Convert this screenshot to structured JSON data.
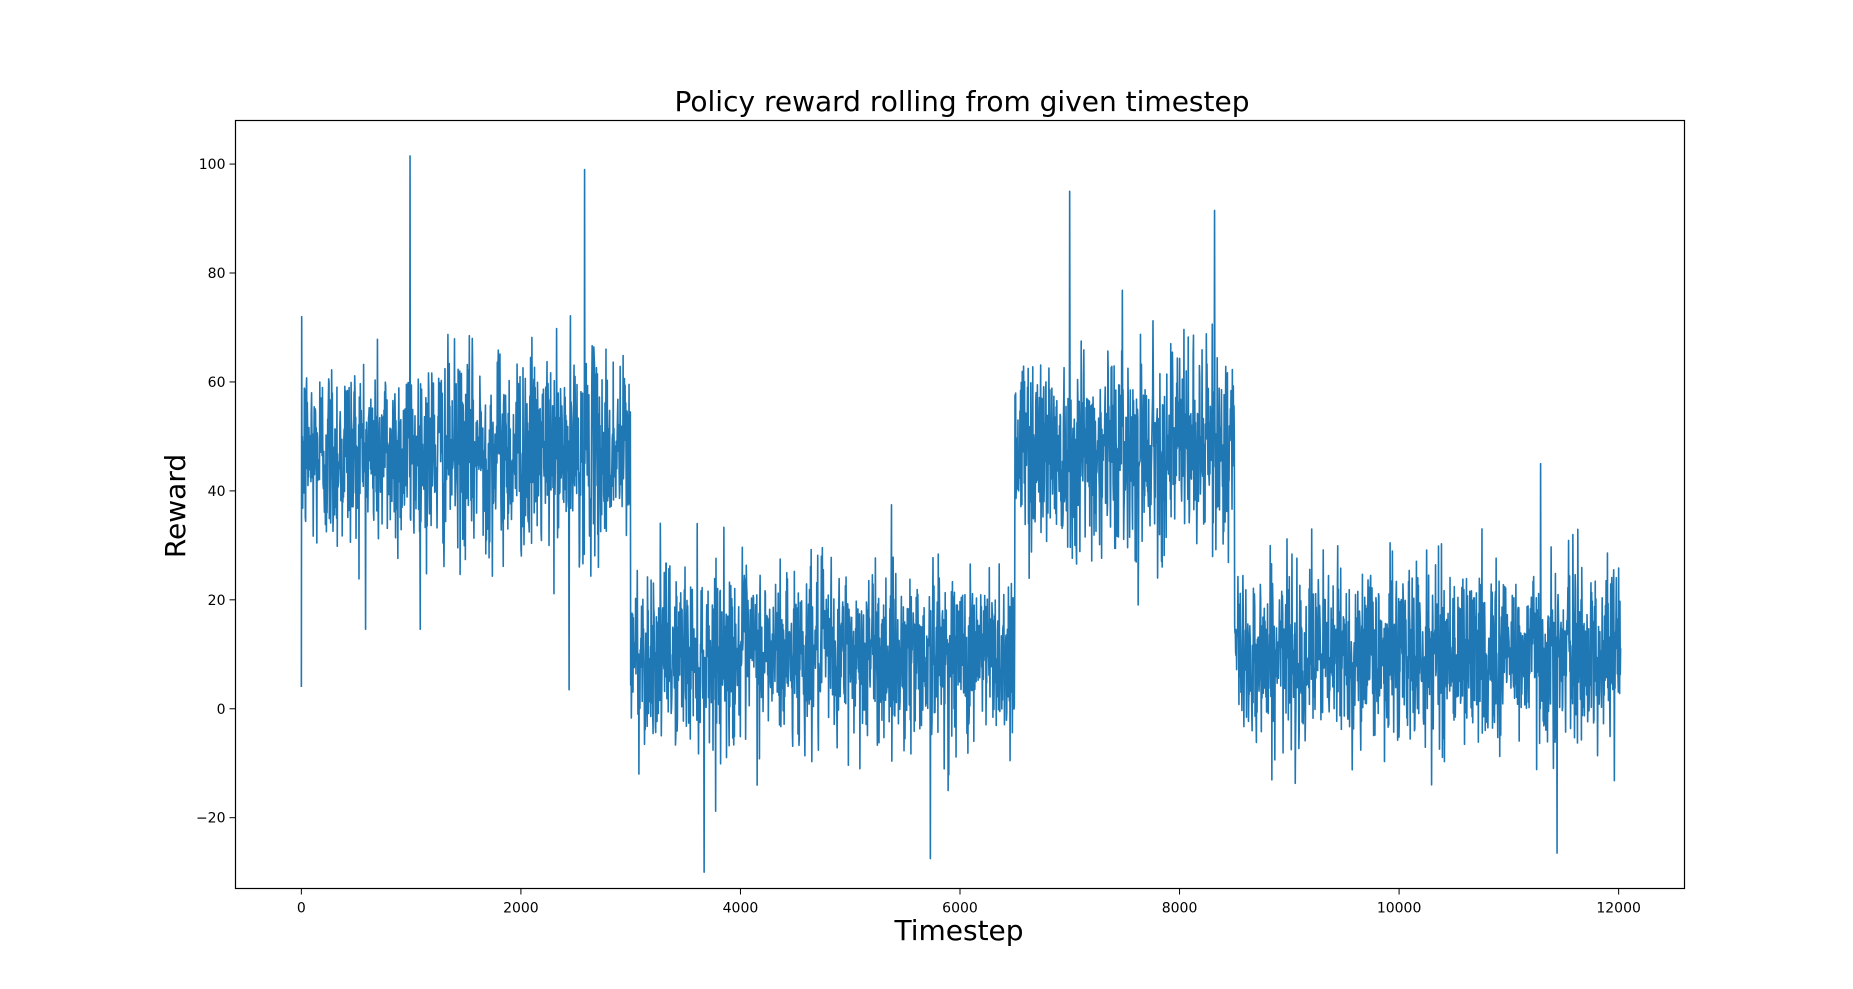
{
  "chart_data": {
    "type": "line",
    "title": "Policy reward rolling from given timestep",
    "xlabel": "Timestep",
    "ylabel": "Reward",
    "xlim": [
      -600,
      12600
    ],
    "ylim": [
      -33,
      108
    ],
    "x_ticks": [
      0,
      2000,
      4000,
      6000,
      8000,
      10000,
      12000
    ],
    "y_ticks": [
      -20,
      0,
      20,
      40,
      60,
      80,
      100
    ],
    "x_tick_labels": [
      "0",
      "2000",
      "4000",
      "6000",
      "8000",
      "10000",
      "12000"
    ],
    "y_tick_labels": [
      "−20",
      "0",
      "20",
      "40",
      "60",
      "80",
      "100"
    ],
    "grid": false,
    "series": [
      {
        "color": "#1f77b4",
        "description_segments": [
          {
            "x_start": 0,
            "x_end": 3000,
            "mean": 47,
            "std": 9
          },
          {
            "x_start": 3000,
            "x_end": 6500,
            "mean": 10,
            "std": 8
          },
          {
            "x_start": 6500,
            "x_end": 8500,
            "mean": 48,
            "std": 9
          },
          {
            "x_start": 8500,
            "x_end": 12020,
            "mean": 10,
            "std": 8
          }
        ],
        "n_points": 12020,
        "extremes": [
          {
            "x": 0,
            "y": 4
          },
          {
            "x": 990,
            "y": 101.5
          },
          {
            "x": 2580,
            "y": 99
          },
          {
            "x": 2440,
            "y": 3.5
          },
          {
            "x": 3670,
            "y": -30
          },
          {
            "x": 5730,
            "y": -27.5
          },
          {
            "x": 7000,
            "y": 95
          },
          {
            "x": 8320,
            "y": 91.5
          },
          {
            "x": 11290,
            "y": 45
          },
          {
            "x": 11440,
            "y": -26.5
          }
        ]
      }
    ]
  }
}
